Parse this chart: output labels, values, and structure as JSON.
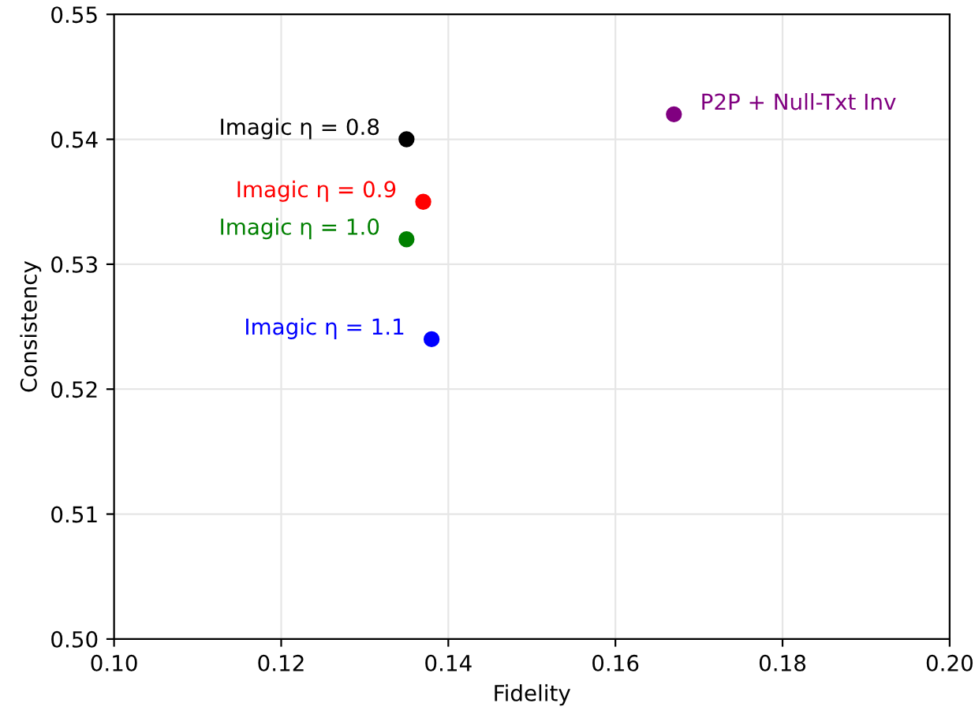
{
  "chart_data": {
    "type": "scatter",
    "xlabel": "Fidelity",
    "ylabel": "Consistency",
    "xlim": [
      0.1,
      0.2
    ],
    "xticks": [
      {
        "value": 0.1,
        "label": "0.10"
      },
      {
        "value": 0.12,
        "label": "0.12"
      },
      {
        "value": 0.14,
        "label": "0.14"
      },
      {
        "value": 0.16,
        "label": "0.16"
      },
      {
        "value": 0.18,
        "label": "0.18"
      },
      {
        "value": 0.2,
        "label": "0.20"
      }
    ],
    "ylim": [
      0.5,
      0.55
    ],
    "yticks": [
      {
        "value": 0.5,
        "label": "0.50"
      },
      0.51,
      0.52,
      0.53,
      0.54,
      0.55
    ],
    "grid": true,
    "legend": false,
    "marker": "circle",
    "series": [
      {
        "name": "Imagic η = 0.8",
        "color": "#000000",
        "x": [
          0.135
        ],
        "values": [
          0.54
        ]
      },
      {
        "name": "Imagic η = 0.9",
        "color": "#ff0000",
        "x": [
          0.137
        ],
        "values": [
          0.535
        ]
      },
      {
        "name": "Imagic η = 1.0",
        "color": "#008000",
        "x": [
          0.135
        ],
        "values": [
          0.532
        ]
      },
      {
        "name": "Imagic η = 1.1",
        "color": "#0000ff",
        "x": [
          0.138
        ],
        "values": [
          0.524
        ]
      },
      {
        "name": "P2P + Null-Txt Inv",
        "color": "#800080",
        "x": [
          0.167
        ],
        "values": [
          0.542
        ]
      }
    ]
  }
}
